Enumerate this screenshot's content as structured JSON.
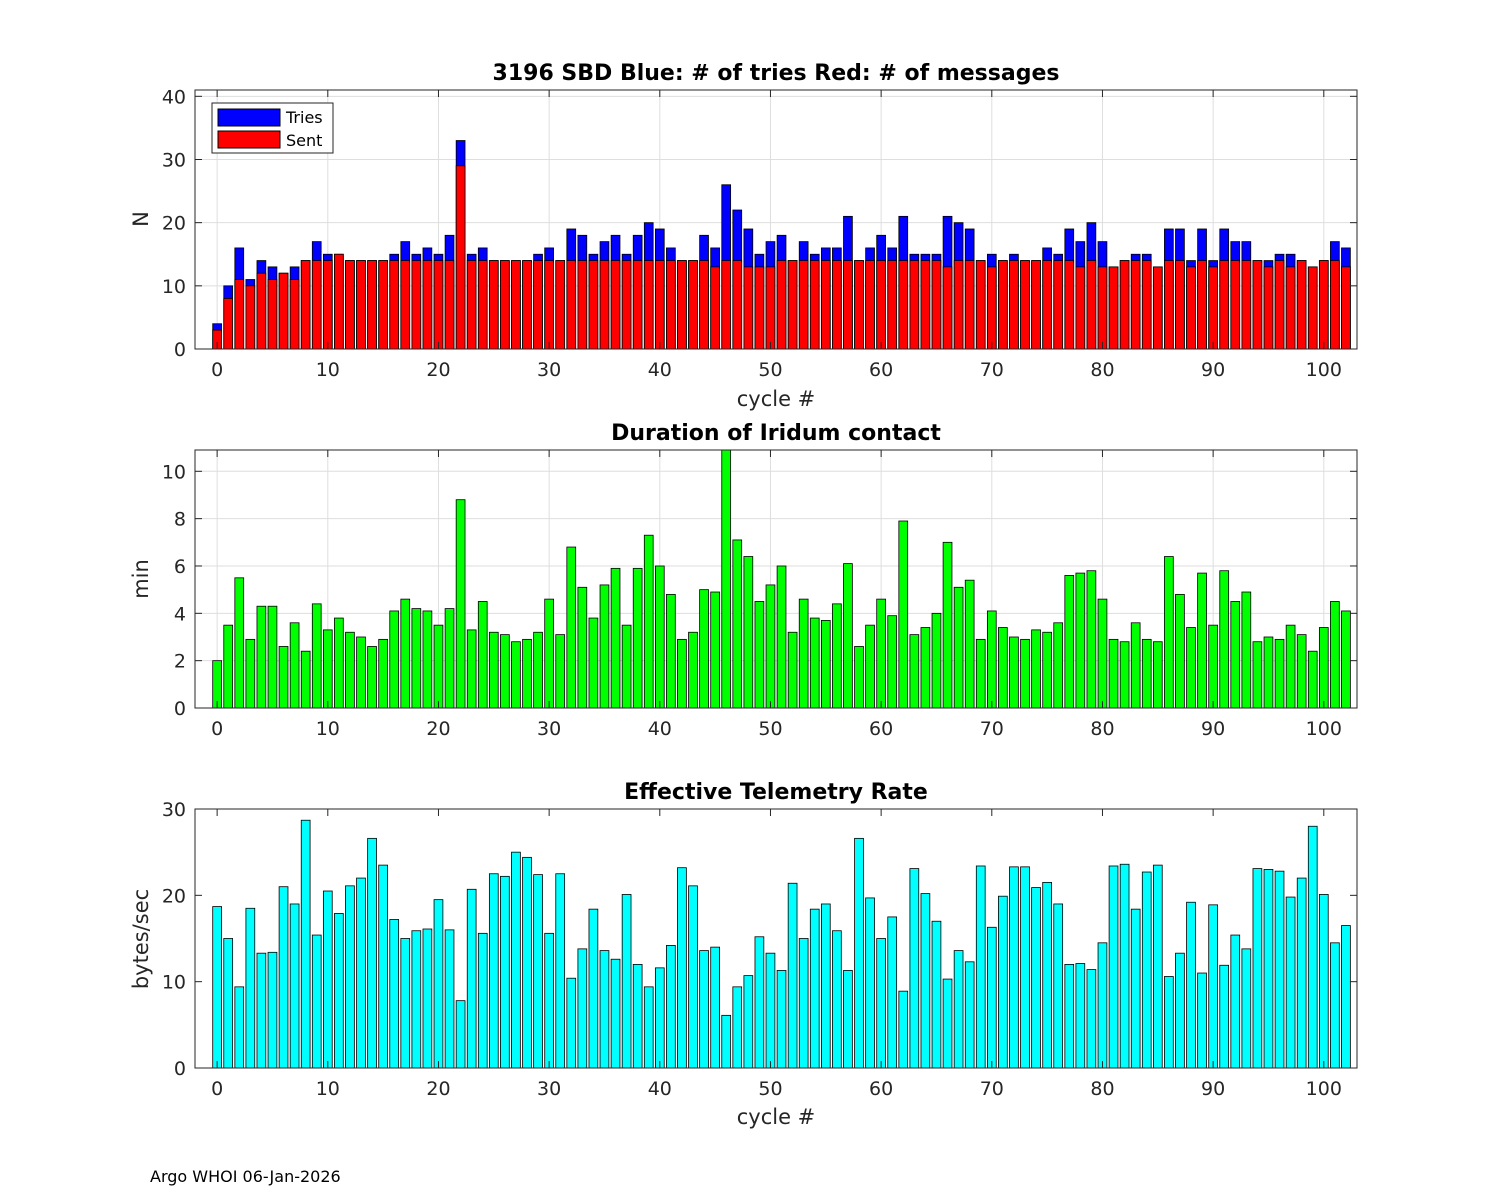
{
  "footer": "Argo WHOI 06-Jan-2026",
  "colors": {
    "tries": "#0000ff",
    "sent": "#ff0000",
    "duration": "#00ff00",
    "rate": "#00ffff",
    "grid": "#dedede",
    "axis": "#262626"
  },
  "chart_data": [
    {
      "type": "bar",
      "title": "3196 SBD  Blue: # of tries   Red: # of messages",
      "xlabel": "cycle #",
      "ylabel": "N",
      "xlim": [
        -2,
        103
      ],
      "ylim": [
        0,
        41
      ],
      "xticks": [
        0,
        10,
        20,
        30,
        40,
        50,
        60,
        70,
        80,
        90,
        100
      ],
      "yticks": [
        0,
        10,
        20,
        30,
        40
      ],
      "grid": true,
      "legend": {
        "placement": "top-left",
        "entries": [
          "Tries",
          "Sent"
        ]
      },
      "x_start": 0,
      "series": [
        {
          "name": "Tries",
          "color": "#0000ff",
          "values": [
            4,
            10,
            16,
            11,
            14,
            13,
            12,
            13,
            14,
            17,
            15,
            15,
            14,
            14,
            14,
            14,
            15,
            17,
            15,
            16,
            15,
            18,
            33,
            15,
            16,
            14,
            14,
            14,
            14,
            15,
            16,
            14,
            19,
            18,
            15,
            17,
            18,
            15,
            18,
            20,
            19,
            16,
            14,
            14,
            18,
            16,
            26,
            22,
            19,
            15,
            17,
            18,
            14,
            17,
            15,
            16,
            16,
            21,
            14,
            16,
            18,
            16,
            21,
            15,
            15,
            15,
            21,
            20,
            19,
            14,
            15,
            14,
            15,
            14,
            14,
            16,
            15,
            19,
            17,
            20,
            17,
            13,
            14,
            15,
            15,
            13,
            19,
            19,
            14,
            19,
            14,
            19,
            17,
            17,
            14,
            14,
            15,
            15,
            14,
            13,
            14,
            17,
            16
          ]
        },
        {
          "name": "Sent",
          "color": "#ff0000",
          "values": [
            3,
            8,
            11,
            10,
            12,
            11,
            12,
            11,
            14,
            14,
            14,
            15,
            14,
            14,
            14,
            14,
            14,
            14,
            14,
            14,
            14,
            14,
            29,
            14,
            14,
            14,
            14,
            14,
            14,
            14,
            14,
            14,
            14,
            14,
            14,
            14,
            14,
            14,
            14,
            14,
            14,
            14,
            14,
            14,
            14,
            13,
            14,
            14,
            13,
            13,
            13,
            14,
            14,
            14,
            14,
            14,
            14,
            14,
            14,
            14,
            14,
            14,
            14,
            14,
            14,
            14,
            13,
            14,
            14,
            14,
            13,
            14,
            14,
            14,
            14,
            14,
            14,
            14,
            13,
            14,
            13,
            13,
            14,
            14,
            14,
            13,
            14,
            14,
            13,
            14,
            13,
            14,
            14,
            14,
            14,
            13,
            14,
            13,
            14,
            13,
            14,
            14,
            13
          ]
        }
      ]
    },
    {
      "type": "bar",
      "title": "Duration of Iridum contact",
      "xlabel": "",
      "ylabel": "min",
      "xlim": [
        -2,
        103
      ],
      "ylim": [
        0,
        10.9
      ],
      "xticks": [
        0,
        10,
        20,
        30,
        40,
        50,
        60,
        70,
        80,
        90,
        100
      ],
      "yticks": [
        0,
        2,
        4,
        6,
        8,
        10
      ],
      "grid": true,
      "x_start": 0,
      "series": [
        {
          "name": "Duration",
          "color": "#00ff00",
          "values": [
            2.0,
            3.5,
            5.5,
            2.9,
            4.3,
            4.3,
            2.6,
            3.6,
            2.4,
            4.4,
            3.3,
            3.8,
            3.2,
            3.0,
            2.6,
            2.9,
            4.1,
            4.6,
            4.2,
            4.1,
            3.5,
            4.2,
            8.8,
            3.3,
            4.5,
            3.2,
            3.1,
            2.8,
            2.9,
            3.2,
            4.6,
            3.1,
            6.8,
            5.1,
            3.8,
            5.2,
            5.9,
            3.5,
            5.9,
            7.3,
            6.0,
            4.8,
            2.9,
            3.2,
            5.0,
            4.9,
            10.9,
            7.1,
            6.4,
            4.5,
            5.2,
            6.0,
            3.2,
            4.6,
            3.8,
            3.7,
            4.4,
            6.1,
            2.6,
            3.5,
            4.6,
            3.9,
            7.9,
            3.1,
            3.4,
            4.0,
            7.0,
            5.1,
            5.4,
            2.9,
            4.1,
            3.4,
            3.0,
            2.9,
            3.3,
            3.2,
            3.6,
            5.6,
            5.7,
            5.8,
            4.6,
            2.9,
            2.8,
            3.6,
            2.9,
            2.8,
            6.4,
            4.8,
            3.4,
            5.7,
            3.5,
            5.8,
            4.5,
            4.9,
            2.8,
            3.0,
            2.9,
            3.5,
            3.1,
            2.4,
            3.4,
            4.5,
            4.1
          ]
        }
      ]
    },
    {
      "type": "bar",
      "title": "Effective Telemetry Rate",
      "xlabel": "cycle #",
      "ylabel": "bytes/sec",
      "xlim": [
        -2,
        103
      ],
      "ylim": [
        0,
        30
      ],
      "xticks": [
        0,
        10,
        20,
        30,
        40,
        50,
        60,
        70,
        80,
        90,
        100
      ],
      "yticks": [
        0,
        10,
        20,
        30
      ],
      "grid": false,
      "x_start": 0,
      "series": [
        {
          "name": "Rate",
          "color": "#00ffff",
          "values": [
            18.7,
            15.0,
            9.4,
            18.5,
            13.3,
            13.4,
            21.0,
            19.0,
            28.7,
            15.4,
            20.5,
            17.9,
            21.1,
            22.0,
            26.6,
            23.5,
            17.2,
            15.0,
            15.9,
            16.1,
            19.5,
            16.0,
            7.8,
            20.7,
            15.6,
            22.5,
            22.2,
            25.0,
            24.4,
            22.4,
            15.6,
            22.5,
            10.4,
            13.8,
            18.4,
            13.6,
            12.6,
            20.1,
            12.0,
            9.4,
            11.6,
            14.2,
            23.2,
            21.1,
            13.6,
            14.0,
            6.1,
            9.4,
            10.7,
            15.2,
            13.3,
            11.3,
            21.4,
            15.0,
            18.4,
            19.0,
            15.9,
            11.3,
            26.6,
            19.7,
            15.0,
            17.5,
            8.9,
            23.1,
            20.2,
            17.0,
            10.3,
            13.6,
            12.3,
            23.4,
            16.3,
            19.9,
            23.3,
            23.3,
            20.9,
            21.5,
            19.0,
            12.0,
            12.1,
            11.4,
            14.5,
            23.4,
            23.6,
            18.4,
            22.7,
            23.5,
            10.6,
            13.3,
            19.2,
            11.0,
            18.9,
            11.9,
            15.4,
            13.8,
            23.1,
            23.0,
            22.8,
            19.8,
            22.0,
            28.0,
            20.1,
            14.5,
            16.5
          ]
        }
      ]
    }
  ]
}
